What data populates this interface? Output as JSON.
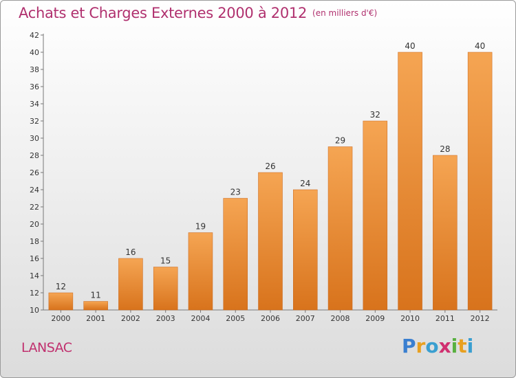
{
  "title": "Achats et Charges Externes 2000 à 2012",
  "subtitle": "(en milliers d'€)",
  "place_label": "LANSAC",
  "brand": {
    "text": "Proxiti",
    "letters": [
      {
        "ch": "P",
        "color": "#3a7fd0"
      },
      {
        "ch": "r",
        "color": "#e8a020"
      },
      {
        "ch": "o",
        "color": "#3a9fd0"
      },
      {
        "ch": "x",
        "color": "#d03070"
      },
      {
        "ch": "i",
        "color": "#58b040"
      },
      {
        "ch": "t",
        "color": "#e8a020"
      },
      {
        "ch": "i",
        "color": "#3a9fd0"
      }
    ]
  },
  "colors": {
    "bar_top": "#f5a553",
    "bar_bottom": "#d8731c",
    "bar_edge": "#c8651a",
    "title": "#b0306e"
  },
  "chart_data": {
    "type": "bar",
    "categories": [
      "2000",
      "2001",
      "2002",
      "2003",
      "2004",
      "2005",
      "2006",
      "2007",
      "2008",
      "2009",
      "2010",
      "2011",
      "2012"
    ],
    "values": [
      12,
      11,
      16,
      15,
      19,
      23,
      26,
      24,
      29,
      32,
      40,
      28,
      40
    ],
    "data_labels": [
      "12",
      "11",
      "16",
      "15",
      "19",
      "23",
      "26",
      "24",
      "29",
      "32",
      "40",
      "28",
      "40"
    ],
    "ylim": [
      10,
      42
    ],
    "yticks": [
      10,
      12,
      14,
      16,
      18,
      20,
      22,
      24,
      26,
      28,
      30,
      32,
      34,
      36,
      38,
      40,
      42
    ],
    "ytick_labels": [
      "10",
      "12",
      "14",
      "16",
      "18",
      "20",
      "22",
      "24",
      "26",
      "28",
      "30",
      "32",
      "34",
      "36",
      "38",
      "40",
      "42"
    ],
    "title": "Achats et Charges Externes 2000 à 2012",
    "xlabel": "",
    "ylabel": "",
    "grid": false,
    "legend": "none"
  }
}
